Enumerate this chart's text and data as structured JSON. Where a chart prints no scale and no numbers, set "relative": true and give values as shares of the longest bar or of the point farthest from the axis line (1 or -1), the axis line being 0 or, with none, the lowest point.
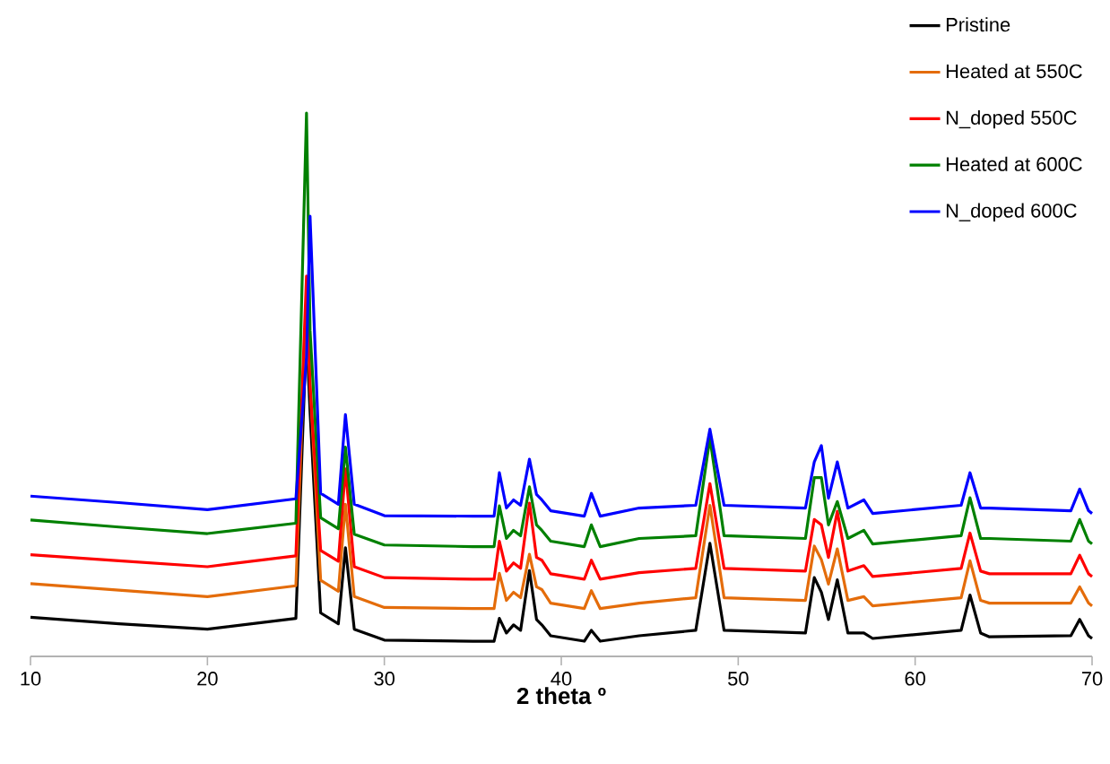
{
  "chart_data": {
    "type": "line",
    "relative": true,
    "xlabel": "2 theta º",
    "x": [
      10,
      15,
      20,
      25.0,
      25.6,
      25.8,
      26.4,
      27.4,
      27.8,
      28.3,
      30,
      35,
      36.2,
      36.5,
      36.9,
      37.3,
      37.7,
      38.2,
      38.6,
      38.9,
      39.4,
      41.3,
      41.7,
      42.2,
      44.4,
      47.6,
      48.4,
      49.2,
      53.8,
      54.3,
      54.7,
      55.1,
      55.6,
      56.2,
      57.1,
      57.6,
      62.6,
      63.1,
      63.7,
      64.2,
      68.8,
      69.3,
      69.8,
      70
    ],
    "xlim": [
      10,
      70
    ],
    "xticks": [
      10,
      20,
      30,
      40,
      50,
      60,
      70
    ],
    "legend": "top right",
    "series": [
      {
        "name": "Pristine",
        "color": "#000000",
        "values": [
          0.072,
          0.06,
          0.05,
          0.07,
          0.6,
          0.45,
          0.08,
          0.06,
          0.2,
          0.05,
          0.03,
          0.028,
          0.028,
          0.07,
          0.043,
          0.058,
          0.048,
          0.158,
          0.068,
          0.058,
          0.038,
          0.028,
          0.048,
          0.028,
          0.038,
          0.048,
          0.208,
          0.048,
          0.043,
          0.145,
          0.118,
          0.068,
          0.141,
          0.043,
          0.043,
          0.033,
          0.048,
          0.113,
          0.043,
          0.036,
          0.038,
          0.068,
          0.038,
          0.033
        ]
      },
      {
        "name": "Heated at 550C",
        "color": "#e46c0a",
        "values": [
          0.134,
          0.122,
          0.11,
          0.13,
          0.66,
          0.5,
          0.14,
          0.12,
          0.28,
          0.11,
          0.09,
          0.088,
          0.088,
          0.153,
          0.103,
          0.118,
          0.108,
          0.188,
          0.128,
          0.123,
          0.098,
          0.088,
          0.121,
          0.088,
          0.098,
          0.108,
          0.278,
          0.108,
          0.103,
          0.203,
          0.178,
          0.133,
          0.198,
          0.103,
          0.11,
          0.093,
          0.108,
          0.176,
          0.103,
          0.098,
          0.098,
          0.128,
          0.098,
          0.093
        ]
      },
      {
        "name": "N_doped 550C",
        "color": "#ff0000",
        "values": [
          0.187,
          0.176,
          0.165,
          0.185,
          0.7,
          0.5,
          0.195,
          0.175,
          0.345,
          0.165,
          0.145,
          0.142,
          0.142,
          0.212,
          0.157,
          0.172,
          0.162,
          0.282,
          0.182,
          0.177,
          0.152,
          0.142,
          0.177,
          0.142,
          0.154,
          0.162,
          0.318,
          0.162,
          0.157,
          0.252,
          0.242,
          0.182,
          0.267,
          0.157,
          0.167,
          0.147,
          0.162,
          0.227,
          0.157,
          0.152,
          0.152,
          0.186,
          0.152,
          0.147
        ]
      },
      {
        "name": "Heated at 600C",
        "color": "#008000",
        "values": [
          0.251,
          0.238,
          0.226,
          0.245,
          1.0,
          0.6,
          0.255,
          0.235,
          0.385,
          0.225,
          0.205,
          0.202,
          0.202,
          0.277,
          0.217,
          0.232,
          0.222,
          0.312,
          0.242,
          0.232,
          0.212,
          0.202,
          0.242,
          0.202,
          0.217,
          0.222,
          0.402,
          0.222,
          0.217,
          0.329,
          0.329,
          0.242,
          0.285,
          0.217,
          0.232,
          0.207,
          0.222,
          0.292,
          0.217,
          0.217,
          0.212,
          0.252,
          0.212,
          0.207
        ]
      },
      {
        "name": "N_doped 600C",
        "color": "#0000ff",
        "values": [
          0.295,
          0.283,
          0.27,
          0.29,
          0.55,
          0.81,
          0.3,
          0.28,
          0.445,
          0.28,
          0.259,
          0.258,
          0.258,
          0.338,
          0.273,
          0.288,
          0.278,
          0.363,
          0.298,
          0.288,
          0.268,
          0.258,
          0.3,
          0.258,
          0.273,
          0.278,
          0.418,
          0.278,
          0.273,
          0.358,
          0.388,
          0.291,
          0.358,
          0.273,
          0.288,
          0.263,
          0.278,
          0.338,
          0.273,
          0.273,
          0.268,
          0.308,
          0.268,
          0.263
        ]
      }
    ]
  }
}
